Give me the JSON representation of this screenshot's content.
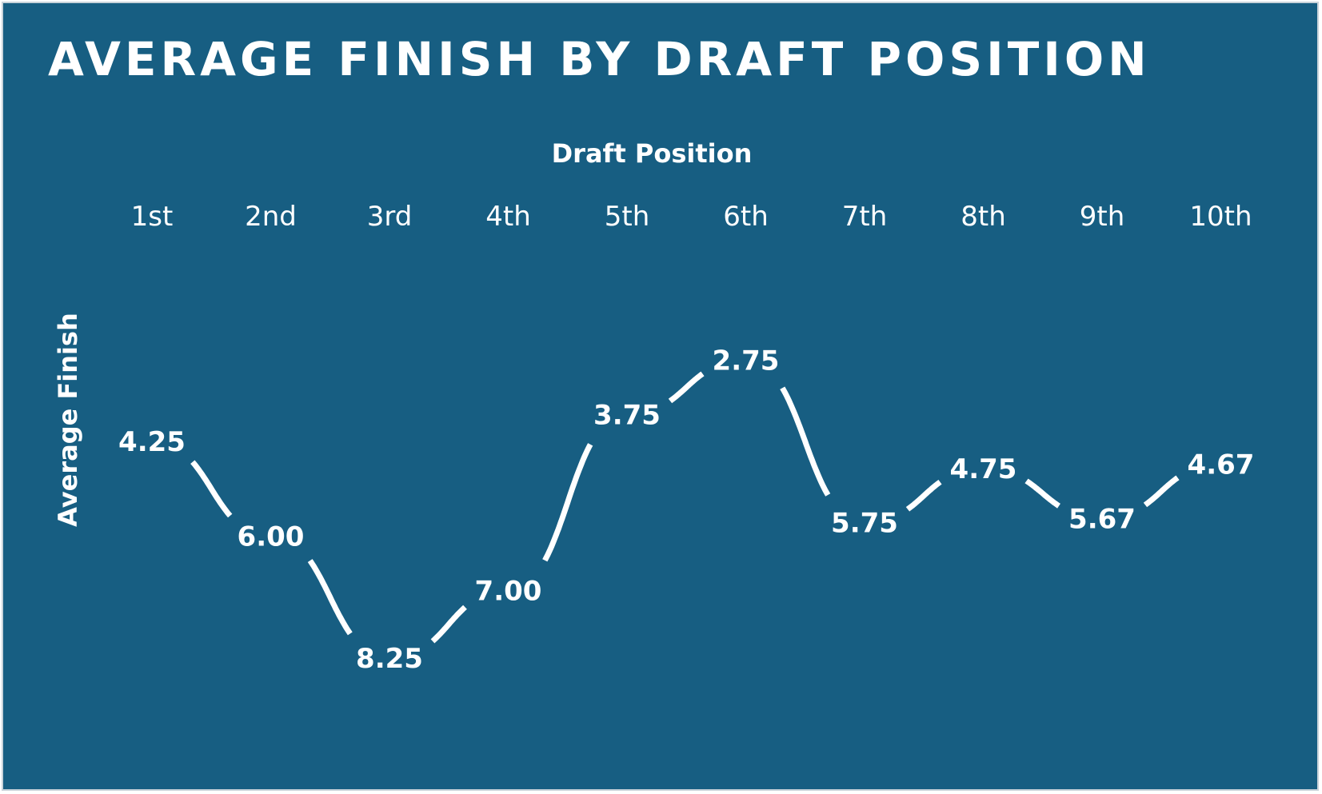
{
  "chart_data": {
    "type": "line",
    "title": "AVERAGE FINISH BY DRAFT POSITION",
    "xlabel": "Draft Position",
    "ylabel": "Average Finish",
    "categories": [
      "1st",
      "2nd",
      "3rd",
      "4th",
      "5th",
      "6th",
      "7th",
      "8th",
      "9th",
      "10th"
    ],
    "values": [
      4.25,
      6.0,
      8.25,
      7.0,
      3.75,
      2.75,
      5.75,
      4.75,
      5.67,
      4.67
    ],
    "value_labels": [
      "4.25",
      "6.00",
      "8.25",
      "7.00",
      "3.75",
      "2.75",
      "5.75",
      "4.75",
      "5.67",
      "4.67"
    ],
    "y_inverted": true,
    "xaxis_position": "top",
    "grid": false,
    "legend": "none",
    "colors": {
      "background": "#175e82",
      "line": "#ffffff",
      "text": "#ffffff"
    }
  }
}
